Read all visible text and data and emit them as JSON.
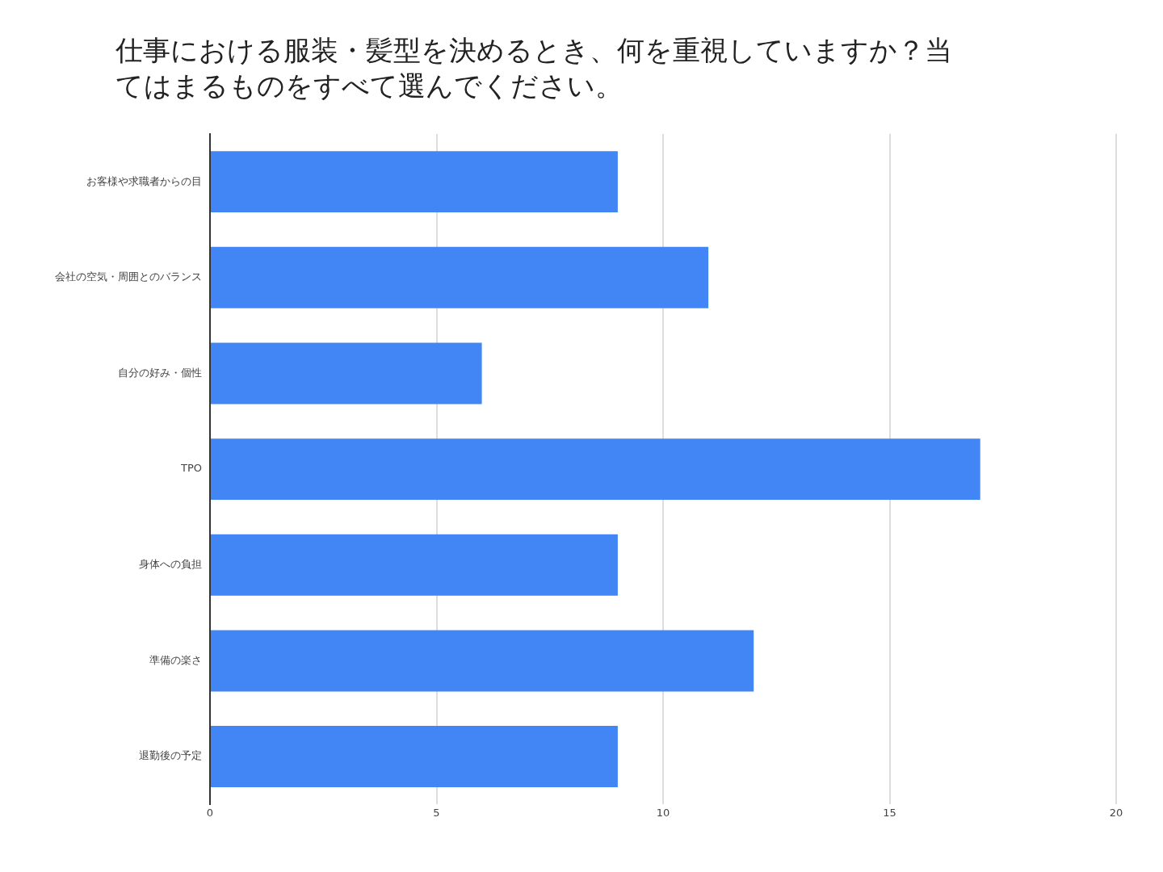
{
  "chart_data": {
    "type": "bar",
    "orientation": "horizontal",
    "title": "仕事における服装・髪型を決めるとき、何を重視していますか？当てはまるものをすべて選んでください。",
    "categories": [
      "お客様や求職者からの目",
      "会社の空気・周囲とのバランス",
      "自分の好み・個性",
      "TPO",
      "身体への負担",
      "準備の楽さ",
      "退勤後の予定"
    ],
    "values": [
      9,
      11,
      6,
      17,
      9,
      12,
      9
    ],
    "color": "#4285f4",
    "xlim": [
      0,
      20
    ],
    "xticks": [
      0,
      5,
      10,
      15,
      20
    ],
    "grid": "x",
    "legend": false
  }
}
